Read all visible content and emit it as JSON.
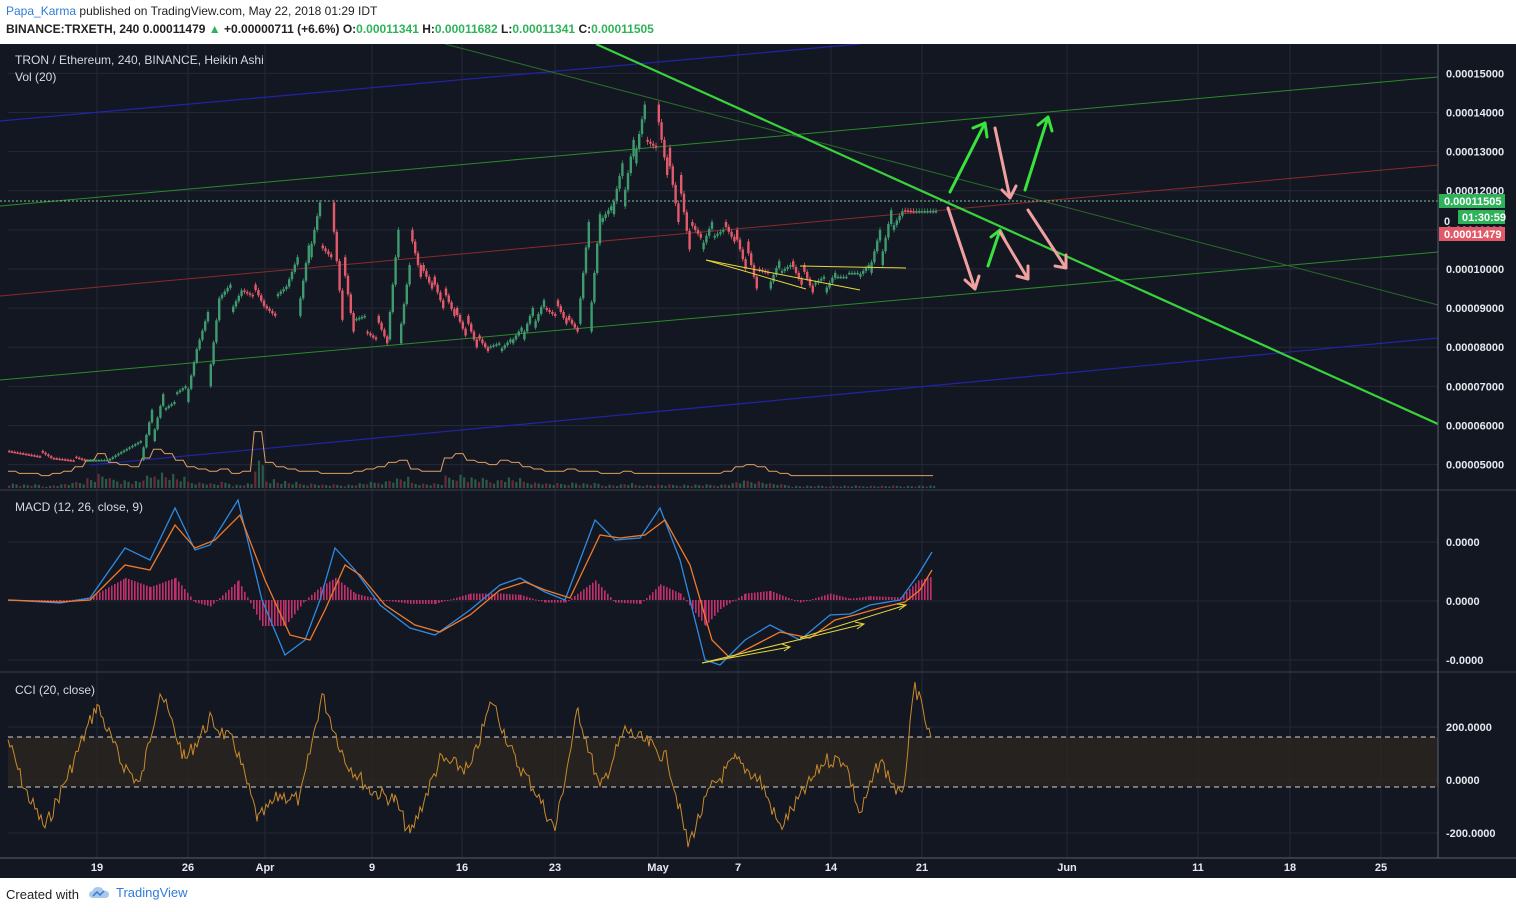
{
  "header": {
    "user": "Papa_Karma",
    "published": "published on TradingView.com, May 22, 2018 01:29 IDT",
    "symbol": "BINANCE:TRXETH, 240",
    "last": "0.00011479",
    "change": "+0.00000711 (+6.6%)",
    "o_label": "O:",
    "o": "0.00011341",
    "h_label": "H:",
    "h": "0.00011682",
    "l_label": "L:",
    "l": "0.00011341",
    "c_label": "C:",
    "c": "0.00011505"
  },
  "footer": {
    "created_with": "Created with",
    "brand": "TradingView"
  },
  "colors": {
    "background": "#131722",
    "candle_up": "#3f9b6e",
    "candle_down": "#e25a6a",
    "trend_green": "#39d23c",
    "channel_green": "#2b8a2b",
    "channel_blue": "#2323a8",
    "mid_red": "#8a2a2a",
    "arrow_green": "#39e23c",
    "arrow_pink": "#f0a0a0",
    "divergence_yellow": "#e8d83a",
    "macd_line": "#2f8ae0",
    "signal_line": "#f07a2a",
    "histogram": "#c0306a",
    "cci_line": "#c98a2a"
  },
  "chart_data": [
    {
      "type": "candlestick",
      "title": "TRON / Ethereum, 240, BINANCE, Heikin Ashi",
      "indicator_label": "Vol (20)",
      "y_ticks": [
        "0.00015000",
        "0.00014000",
        "0.00013000",
        "0.00012000",
        "0.00011000",
        "0.00010000",
        "0.00009000",
        "0.00008000",
        "0.00007000",
        "0.00006000",
        "0.00005000"
      ],
      "ylim": [
        4.35e-05,
        0.0001575
      ],
      "x_ticks": [
        "19",
        "26",
        "Apr",
        "9",
        "16",
        "23",
        "May",
        "7",
        "14",
        "21",
        "Jun",
        "11",
        "18",
        "25"
      ],
      "price_label": "0.00011505",
      "countdown_label": "01:30:59",
      "last_label": "0.00011479",
      "hidden_label": "0",
      "series": [
        {
          "name": "close",
          "x": [
            0,
            3,
            6,
            9,
            12,
            13,
            14,
            15,
            16,
            18,
            20,
            22,
            24,
            26,
            27,
            28,
            29,
            30,
            31,
            32,
            33,
            34,
            35,
            36,
            37,
            38,
            39,
            40,
            41,
            42,
            43,
            44,
            45,
            46,
            47,
            48,
            49,
            50,
            51,
            52,
            53,
            54,
            55,
            56,
            57,
            58,
            59,
            60,
            61,
            62,
            63,
            64,
            65,
            66,
            67,
            68,
            69,
            70,
            71,
            72,
            73,
            74,
            75,
            76,
            77,
            78,
            79,
            80,
            81,
            82
          ],
          "values": [
            5.35e-05,
            5.2e-05,
            5.1e-05,
            5.12e-05,
            5.6e-05,
            6.4e-05,
            6.8e-05,
            6.6e-05,
            7e-05,
            8.9e-05,
            9.6e-05,
            9.3e-05,
            8.8e-05,
            0.000103,
            0.000106,
            0.000117,
            0.000103,
            8.7e-05,
            8.4e-05,
            8.8e-05,
            8.2e-05,
            8.1e-05,
            0.00011,
            0.000101,
            9.8e-05,
            9.5e-05,
            9e-05,
            8.8e-05,
            8.3e-05,
            8e-05,
            7.9e-05,
            8.1e-05,
            8.2e-05,
            8.5e-05,
            9e-05,
            9.2e-05,
            8.8e-05,
            8.6e-05,
            8.4e-05,
            0.000112,
            0.000114,
            0.000116,
            0.000127,
            0.000133,
            0.000142,
            0.000131,
            0.000124,
            0.000112,
            0.000105,
            0.000108,
            0.000112,
            0.00011,
            0.000107,
            0.0001,
            9.5e-05,
            9.9e-05,
            0.000102,
            0.000101,
            9.6e-05,
            9.4e-05,
            9.8e-05,
            9.9e-05,
            9.8e-05,
            9.9e-05,
            0.000101,
            0.00011,
            0.000115,
            0.0001148,
            0.0001148,
            0.0001148
          ]
        }
      ]
    },
    {
      "type": "line",
      "title": "MACD (12, 26, close, 9)",
      "y_ticks": [
        "0.0000",
        "0.0000",
        "-0.0000"
      ]
    },
    {
      "type": "line",
      "title": "CCI (20, close)",
      "y_ticks": [
        "200.0000",
        "0.0000",
        "-200.0000"
      ],
      "bands": [
        100,
        -100
      ]
    }
  ]
}
